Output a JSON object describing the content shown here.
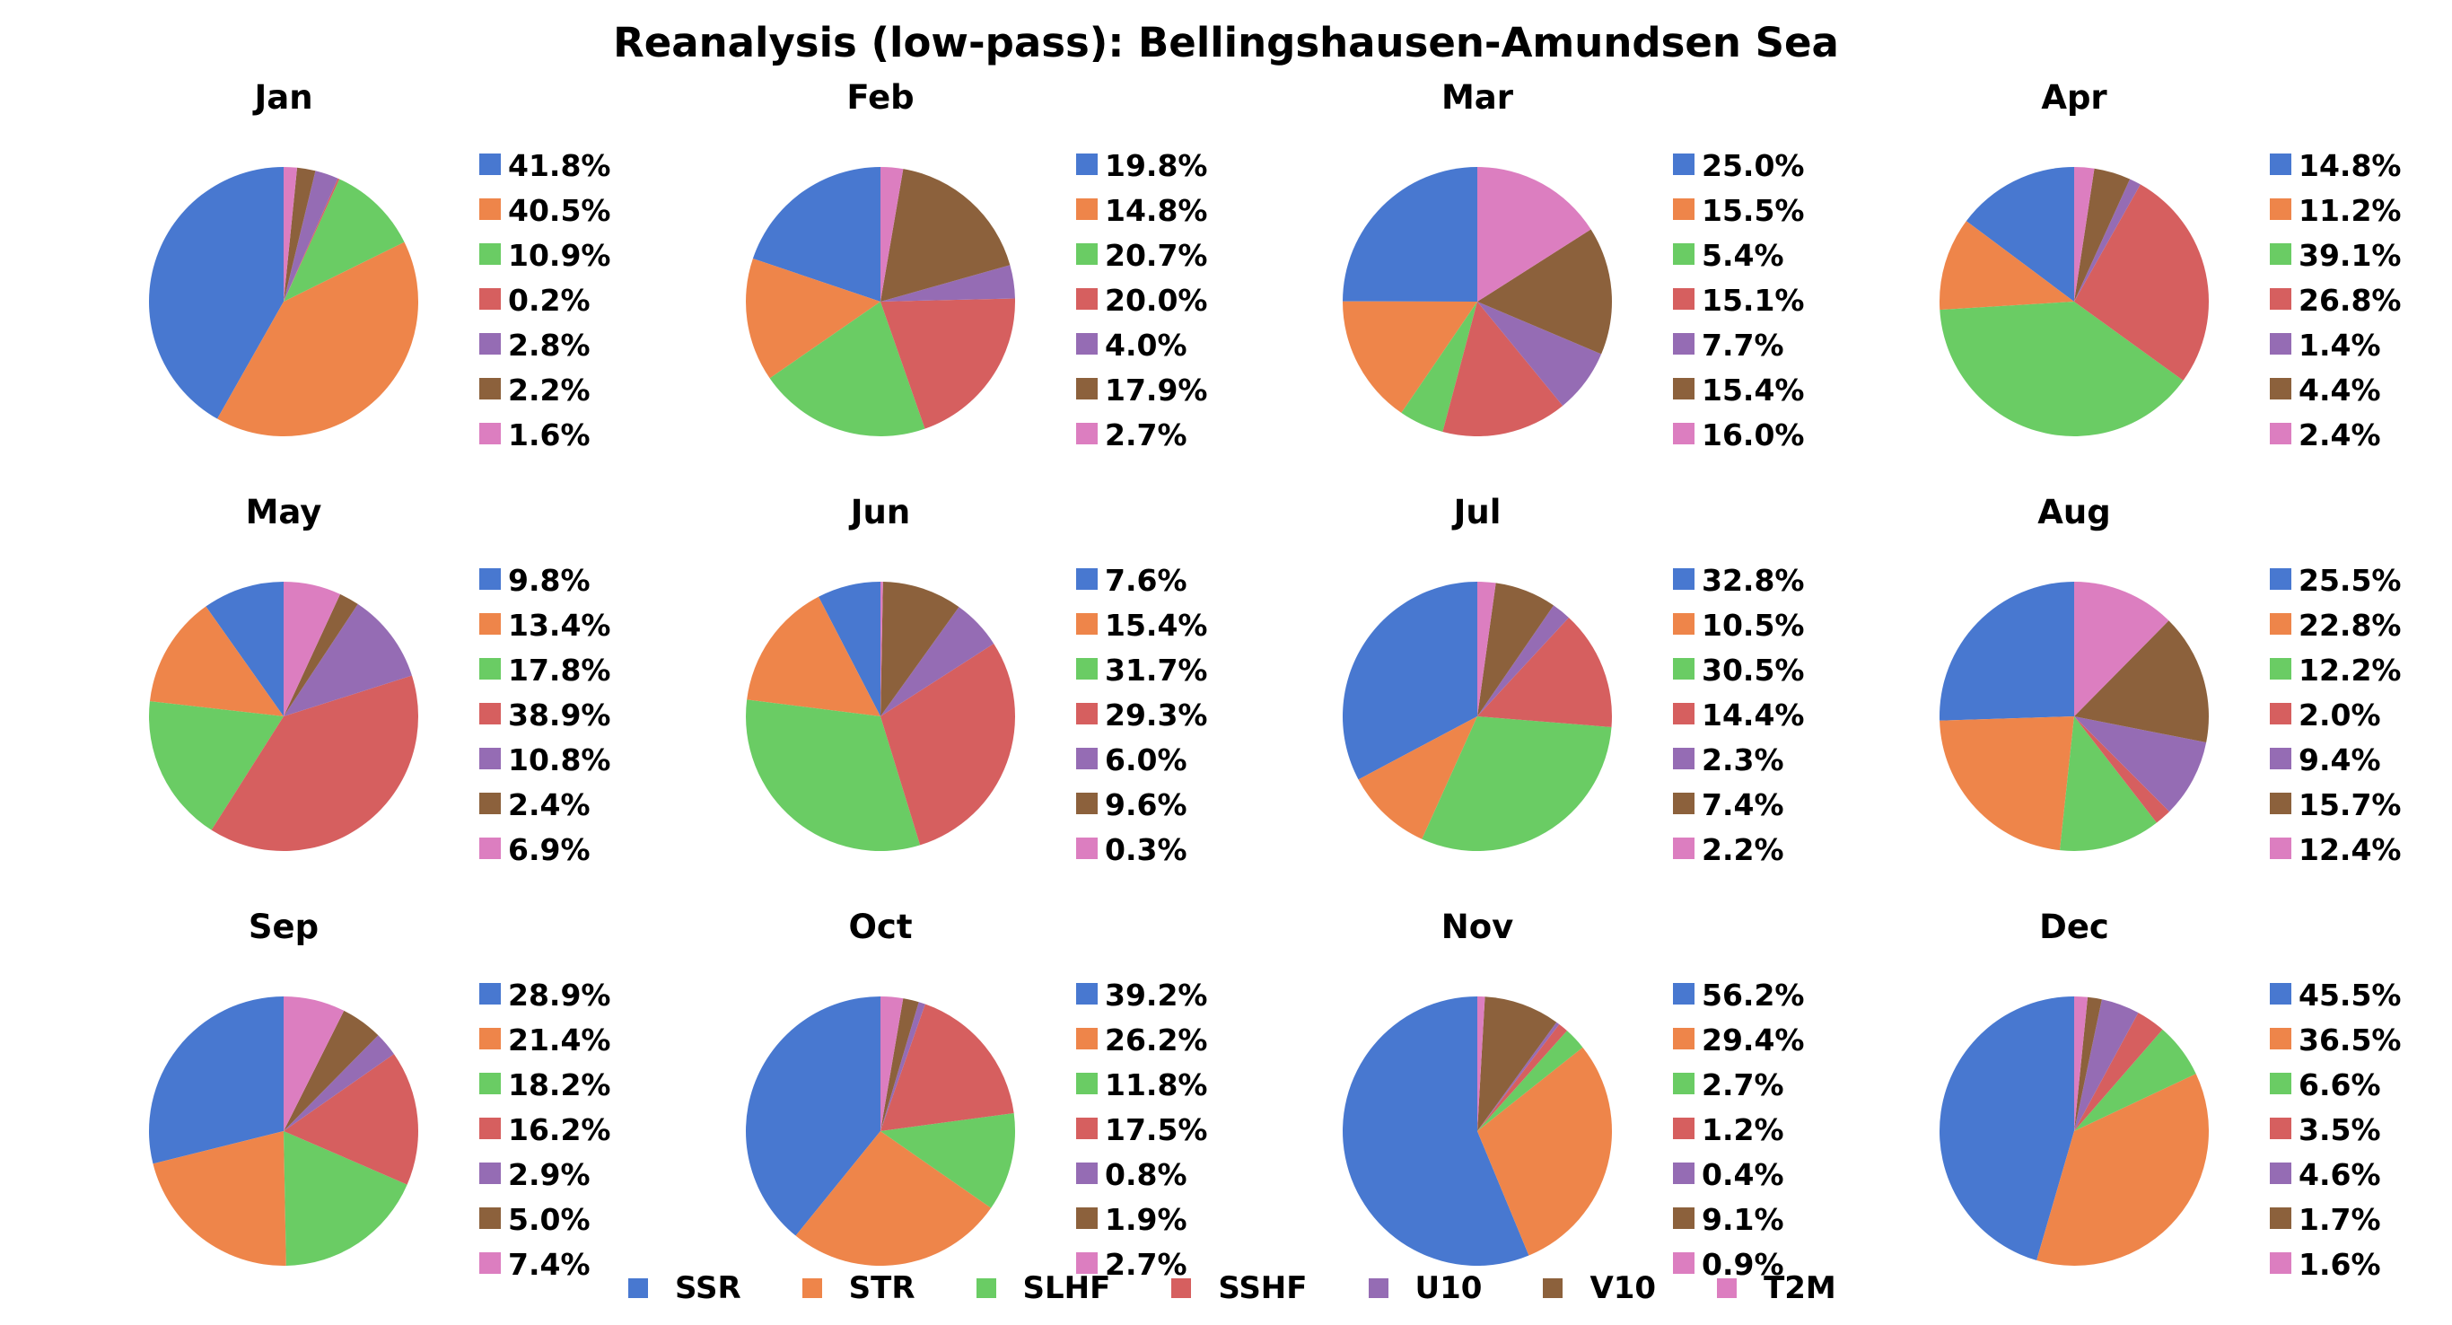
{
  "title": "Reanalysis (low-pass): Bellingshausen-Amundsen Sea",
  "legend": {
    "entries": [
      {
        "label": "SSR",
        "color": "#4878d0"
      },
      {
        "label": "STR",
        "color": "#ee854a"
      },
      {
        "label": "SLHF",
        "color": "#6acc64"
      },
      {
        "label": "SSHF",
        "color": "#d65f5f"
      },
      {
        "label": "U10",
        "color": "#956cb4"
      },
      {
        "label": "V10",
        "color": "#8c613c"
      },
      {
        "label": "T2M",
        "color": "#dc7ec0"
      }
    ]
  },
  "chart_data": [
    {
      "type": "pie",
      "title": "Jan",
      "categories": [
        "SSR",
        "STR",
        "SLHF",
        "SSHF",
        "U10",
        "V10",
        "T2M"
      ],
      "values": [
        41.8,
        40.5,
        10.9,
        0.2,
        2.8,
        2.2,
        1.6
      ],
      "labels": [
        "41.8%",
        "40.5%",
        "10.9%",
        "0.2%",
        "2.8%",
        "2.2%",
        "1.6%"
      ]
    },
    {
      "type": "pie",
      "title": "Feb",
      "categories": [
        "SSR",
        "STR",
        "SLHF",
        "SSHF",
        "U10",
        "V10",
        "T2M"
      ],
      "values": [
        19.8,
        14.8,
        20.7,
        20.0,
        4.0,
        17.9,
        2.7
      ],
      "labels": [
        "19.8%",
        "14.8%",
        "20.7%",
        "20.0%",
        "4.0%",
        "17.9%",
        "2.7%"
      ]
    },
    {
      "type": "pie",
      "title": "Mar",
      "categories": [
        "SSR",
        "STR",
        "SLHF",
        "SSHF",
        "U10",
        "V10",
        "T2M"
      ],
      "values": [
        25.0,
        15.5,
        5.4,
        15.1,
        7.7,
        15.4,
        16.0
      ],
      "labels": [
        "25.0%",
        "15.5%",
        "5.4%",
        "15.1%",
        "7.7%",
        "15.4%",
        "16.0%"
      ]
    },
    {
      "type": "pie",
      "title": "Apr",
      "categories": [
        "SSR",
        "STR",
        "SLHF",
        "SSHF",
        "U10",
        "V10",
        "T2M"
      ],
      "values": [
        14.8,
        11.2,
        39.1,
        26.8,
        1.4,
        4.4,
        2.4
      ],
      "labels": [
        "14.8%",
        "11.2%",
        "39.1%",
        "26.8%",
        "1.4%",
        "4.4%",
        "2.4%"
      ]
    },
    {
      "type": "pie",
      "title": "May",
      "categories": [
        "SSR",
        "STR",
        "SLHF",
        "SSHF",
        "U10",
        "V10",
        "T2M"
      ],
      "values": [
        9.8,
        13.4,
        17.8,
        38.9,
        10.8,
        2.4,
        6.9
      ],
      "labels": [
        "9.8%",
        "13.4%",
        "17.8%",
        "38.9%",
        "10.8%",
        "2.4%",
        "6.9%"
      ]
    },
    {
      "type": "pie",
      "title": "Jun",
      "categories": [
        "SSR",
        "STR",
        "SLHF",
        "SSHF",
        "U10",
        "V10",
        "T2M"
      ],
      "values": [
        7.6,
        15.4,
        31.7,
        29.3,
        6.0,
        9.6,
        0.3
      ],
      "labels": [
        "7.6%",
        "15.4%",
        "31.7%",
        "29.3%",
        "6.0%",
        "9.6%",
        "0.3%"
      ]
    },
    {
      "type": "pie",
      "title": "Jul",
      "categories": [
        "SSR",
        "STR",
        "SLHF",
        "SSHF",
        "U10",
        "V10",
        "T2M"
      ],
      "values": [
        32.8,
        10.5,
        30.5,
        14.4,
        2.3,
        7.4,
        2.2
      ],
      "labels": [
        "32.8%",
        "10.5%",
        "30.5%",
        "14.4%",
        "2.3%",
        "7.4%",
        "2.2%"
      ]
    },
    {
      "type": "pie",
      "title": "Aug",
      "categories": [
        "SSR",
        "STR",
        "SLHF",
        "SSHF",
        "U10",
        "V10",
        "T2M"
      ],
      "values": [
        25.5,
        22.8,
        12.2,
        2.0,
        9.4,
        15.7,
        12.4
      ],
      "labels": [
        "25.5%",
        "22.8%",
        "12.2%",
        "2.0%",
        "9.4%",
        "15.7%",
        "12.4%"
      ]
    },
    {
      "type": "pie",
      "title": "Sep",
      "categories": [
        "SSR",
        "STR",
        "SLHF",
        "SSHF",
        "U10",
        "V10",
        "T2M"
      ],
      "values": [
        28.9,
        21.4,
        18.2,
        16.2,
        2.9,
        5.0,
        7.4
      ],
      "labels": [
        "28.9%",
        "21.4%",
        "18.2%",
        "16.2%",
        "2.9%",
        "5.0%",
        "7.4%"
      ]
    },
    {
      "type": "pie",
      "title": "Oct",
      "categories": [
        "SSR",
        "STR",
        "SLHF",
        "SSHF",
        "U10",
        "V10",
        "T2M"
      ],
      "values": [
        39.2,
        26.2,
        11.8,
        17.5,
        0.8,
        1.9,
        2.7
      ],
      "labels": [
        "39.2%",
        "26.2%",
        "11.8%",
        "17.5%",
        "0.8%",
        "1.9%",
        "2.7%"
      ]
    },
    {
      "type": "pie",
      "title": "Nov",
      "categories": [
        "SSR",
        "STR",
        "SLHF",
        "SSHF",
        "U10",
        "V10",
        "T2M"
      ],
      "values": [
        56.2,
        29.4,
        2.7,
        1.2,
        0.4,
        9.1,
        0.9
      ],
      "labels": [
        "56.2%",
        "29.4%",
        "2.7%",
        "1.2%",
        "0.4%",
        "9.1%",
        "0.9%"
      ]
    },
    {
      "type": "pie",
      "title": "Dec",
      "categories": [
        "SSR",
        "STR",
        "SLHF",
        "SSHF",
        "U10",
        "V10",
        "T2M"
      ],
      "values": [
        45.5,
        36.5,
        6.6,
        3.5,
        4.6,
        1.7,
        1.6
      ],
      "labels": [
        "45.5%",
        "36.5%",
        "6.6%",
        "3.5%",
        "4.6%",
        "1.7%",
        "1.6%"
      ]
    }
  ]
}
